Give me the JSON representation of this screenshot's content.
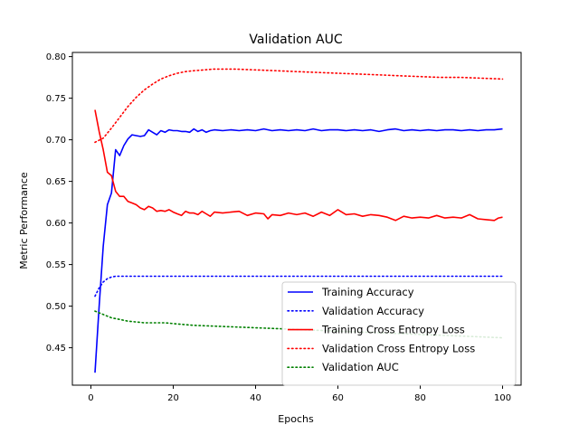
{
  "chart_data": {
    "type": "line",
    "title": "Validation AUC",
    "xlabel": "Epochs",
    "ylabel": "Metric Performance",
    "xlim": [
      -4.5,
      104.5
    ],
    "ylim": [
      0.405,
      0.805
    ],
    "xticks": [
      0,
      20,
      40,
      60,
      80,
      100
    ],
    "xtick_labels": [
      "0",
      "20",
      "40",
      "60",
      "80",
      "100"
    ],
    "yticks": [
      0.45,
      0.5,
      0.55,
      0.6,
      0.65,
      0.7,
      0.75,
      0.8
    ],
    "ytick_labels": [
      "0.45",
      "0.50",
      "0.55",
      "0.60",
      "0.65",
      "0.70",
      "0.75",
      "0.80"
    ],
    "grid": false,
    "legend_position": "lower-right",
    "series": [
      {
        "name": "Training Accuracy",
        "color": "#0000ff",
        "style": "solid",
        "points": [
          [
            1,
            0.42
          ],
          [
            2,
            0.5
          ],
          [
            3,
            0.572
          ],
          [
            4,
            0.622
          ],
          [
            5,
            0.636
          ],
          [
            6,
            0.688
          ],
          [
            7,
            0.681
          ],
          [
            8,
            0.693
          ],
          [
            9,
            0.701
          ],
          [
            10,
            0.706
          ],
          [
            11,
            0.705
          ],
          [
            12,
            0.704
          ],
          [
            13,
            0.705
          ],
          [
            14,
            0.712
          ],
          [
            15,
            0.709
          ],
          [
            16,
            0.706
          ],
          [
            17,
            0.711
          ],
          [
            18,
            0.709
          ],
          [
            19,
            0.712
          ],
          [
            20,
            0.711
          ],
          [
            21,
            0.711
          ],
          [
            22,
            0.71
          ],
          [
            23,
            0.71
          ],
          [
            24,
            0.709
          ],
          [
            25,
            0.713
          ],
          [
            26,
            0.71
          ],
          [
            27,
            0.712
          ],
          [
            28,
            0.709
          ],
          [
            29,
            0.711
          ],
          [
            30,
            0.712
          ],
          [
            32,
            0.711
          ],
          [
            34,
            0.712
          ],
          [
            36,
            0.711
          ],
          [
            38,
            0.712
          ],
          [
            40,
            0.711
          ],
          [
            42,
            0.713
          ],
          [
            44,
            0.711
          ],
          [
            46,
            0.712
          ],
          [
            48,
            0.711
          ],
          [
            50,
            0.712
          ],
          [
            52,
            0.711
          ],
          [
            54,
            0.713
          ],
          [
            56,
            0.711
          ],
          [
            58,
            0.712
          ],
          [
            60,
            0.712
          ],
          [
            62,
            0.711
          ],
          [
            64,
            0.712
          ],
          [
            66,
            0.711
          ],
          [
            68,
            0.712
          ],
          [
            70,
            0.71
          ],
          [
            72,
            0.712
          ],
          [
            74,
            0.713
          ],
          [
            76,
            0.711
          ],
          [
            78,
            0.712
          ],
          [
            80,
            0.711
          ],
          [
            82,
            0.712
          ],
          [
            84,
            0.711
          ],
          [
            86,
            0.712
          ],
          [
            88,
            0.712
          ],
          [
            90,
            0.711
          ],
          [
            92,
            0.712
          ],
          [
            94,
            0.711
          ],
          [
            96,
            0.712
          ],
          [
            98,
            0.712
          ],
          [
            100,
            0.713
          ]
        ]
      },
      {
        "name": "Validation Accuracy",
        "color": "#0000ff",
        "style": "dotted",
        "points": [
          [
            1,
            0.512
          ],
          [
            2,
            0.522
          ],
          [
            3,
            0.529
          ],
          [
            4,
            0.533
          ],
          [
            5,
            0.535
          ],
          [
            6,
            0.536
          ],
          [
            8,
            0.536
          ],
          [
            10,
            0.536
          ],
          [
            20,
            0.536
          ],
          [
            30,
            0.536
          ],
          [
            40,
            0.536
          ],
          [
            50,
            0.536
          ],
          [
            60,
            0.536
          ],
          [
            70,
            0.536
          ],
          [
            80,
            0.536
          ],
          [
            90,
            0.536
          ],
          [
            100,
            0.536
          ]
        ]
      },
      {
        "name": "Training Cross Entropy Loss",
        "color": "#ff0000",
        "style": "solid",
        "points": [
          [
            1,
            0.736
          ],
          [
            2,
            0.71
          ],
          [
            3,
            0.688
          ],
          [
            4,
            0.661
          ],
          [
            5,
            0.657
          ],
          [
            6,
            0.638
          ],
          [
            7,
            0.632
          ],
          [
            8,
            0.632
          ],
          [
            9,
            0.626
          ],
          [
            10,
            0.624
          ],
          [
            11,
            0.622
          ],
          [
            12,
            0.618
          ],
          [
            13,
            0.616
          ],
          [
            14,
            0.62
          ],
          [
            15,
            0.618
          ],
          [
            16,
            0.614
          ],
          [
            17,
            0.615
          ],
          [
            18,
            0.614
          ],
          [
            19,
            0.616
          ],
          [
            20,
            0.613
          ],
          [
            21,
            0.611
          ],
          [
            22,
            0.609
          ],
          [
            23,
            0.614
          ],
          [
            24,
            0.612
          ],
          [
            25,
            0.612
          ],
          [
            26,
            0.61
          ],
          [
            27,
            0.614
          ],
          [
            28,
            0.611
          ],
          [
            29,
            0.608
          ],
          [
            30,
            0.613
          ],
          [
            32,
            0.612
          ],
          [
            34,
            0.613
          ],
          [
            36,
            0.614
          ],
          [
            38,
            0.609
          ],
          [
            40,
            0.612
          ],
          [
            42,
            0.611
          ],
          [
            43,
            0.605
          ],
          [
            44,
            0.61
          ],
          [
            46,
            0.609
          ],
          [
            48,
            0.612
          ],
          [
            50,
            0.61
          ],
          [
            52,
            0.612
          ],
          [
            54,
            0.608
          ],
          [
            56,
            0.613
          ],
          [
            58,
            0.609
          ],
          [
            60,
            0.616
          ],
          [
            62,
            0.61
          ],
          [
            64,
            0.611
          ],
          [
            66,
            0.608
          ],
          [
            68,
            0.61
          ],
          [
            70,
            0.609
          ],
          [
            72,
            0.607
          ],
          [
            74,
            0.603
          ],
          [
            76,
            0.608
          ],
          [
            78,
            0.606
          ],
          [
            80,
            0.607
          ],
          [
            82,
            0.606
          ],
          [
            84,
            0.609
          ],
          [
            86,
            0.606
          ],
          [
            88,
            0.607
          ],
          [
            90,
            0.606
          ],
          [
            92,
            0.61
          ],
          [
            94,
            0.605
          ],
          [
            96,
            0.604
          ],
          [
            98,
            0.603
          ],
          [
            99,
            0.606
          ],
          [
            100,
            0.607
          ]
        ]
      },
      {
        "name": "Validation Cross Entropy Loss",
        "color": "#ff0000",
        "style": "dotted",
        "points": [
          [
            1,
            0.697
          ],
          [
            3,
            0.702
          ],
          [
            5,
            0.714
          ],
          [
            7,
            0.727
          ],
          [
            9,
            0.74
          ],
          [
            11,
            0.751
          ],
          [
            13,
            0.76
          ],
          [
            15,
            0.767
          ],
          [
            17,
            0.773
          ],
          [
            19,
            0.777
          ],
          [
            21,
            0.78
          ],
          [
            23,
            0.782
          ],
          [
            25,
            0.783
          ],
          [
            30,
            0.785
          ],
          [
            35,
            0.785
          ],
          [
            40,
            0.784
          ],
          [
            45,
            0.783
          ],
          [
            50,
            0.782
          ],
          [
            55,
            0.781
          ],
          [
            60,
            0.78
          ],
          [
            65,
            0.779
          ],
          [
            70,
            0.778
          ],
          [
            75,
            0.777
          ],
          [
            80,
            0.776
          ],
          [
            85,
            0.775
          ],
          [
            90,
            0.775
          ],
          [
            95,
            0.774
          ],
          [
            100,
            0.773
          ]
        ]
      },
      {
        "name": "Validation AUC",
        "color": "#008000",
        "style": "dotted",
        "points": [
          [
            1,
            0.494
          ],
          [
            3,
            0.49
          ],
          [
            5,
            0.486
          ],
          [
            7,
            0.484
          ],
          [
            9,
            0.482
          ],
          [
            11,
            0.481
          ],
          [
            13,
            0.48
          ],
          [
            15,
            0.48
          ],
          [
            18,
            0.48
          ],
          [
            20,
            0.479
          ],
          [
            25,
            0.477
          ],
          [
            30,
            0.476
          ],
          [
            35,
            0.475
          ],
          [
            40,
            0.474
          ],
          [
            45,
            0.473
          ],
          [
            50,
            0.472
          ],
          [
            55,
            0.471
          ],
          [
            60,
            0.47
          ],
          [
            65,
            0.469
          ],
          [
            70,
            0.468
          ],
          [
            80,
            0.466
          ],
          [
            90,
            0.464
          ],
          [
            100,
            0.462
          ]
        ]
      }
    ]
  }
}
